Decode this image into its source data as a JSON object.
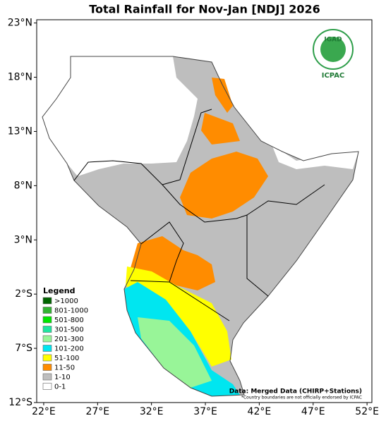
{
  "chart_data": {
    "type": "map",
    "title": "Total Rainfall for Nov-Jan [NDJ] 2026",
    "xlim": [
      21.35,
      52.45
    ],
    "ylim": [
      -12,
      23.3
    ],
    "xticks": [
      {
        "value": 22,
        "label": "22°E"
      },
      {
        "value": 27,
        "label": "27°E"
      },
      {
        "value": 32,
        "label": "32°E"
      },
      {
        "value": 37,
        "label": "37°E"
      },
      {
        "value": 42,
        "label": "42°E"
      },
      {
        "value": 47,
        "label": "47°E"
      },
      {
        "value": 52,
        "label": "52°E"
      }
    ],
    "yticks": [
      {
        "value": 23,
        "label": "23°N"
      },
      {
        "value": 18,
        "label": "18°N"
      },
      {
        "value": 13,
        "label": "13°N"
      },
      {
        "value": 8,
        "label": "8°N"
      },
      {
        "value": 3,
        "label": "3°N"
      },
      {
        "value": -2,
        "label": "2°S"
      },
      {
        "value": -7,
        "label": "7°S"
      },
      {
        "value": -12,
        "label": "12°S"
      }
    ],
    "legend": {
      "title": "Legend",
      "entries": [
        {
          "name": ">1000",
          "color": "#006400"
        },
        {
          "name": "801-1000",
          "color": "#32b432"
        },
        {
          "name": "501-800",
          "color": "#00e600"
        },
        {
          "name": "301-500",
          "color": "#1ee6a0"
        },
        {
          "name": "201-300",
          "color": "#98f598"
        },
        {
          "name": "101-200",
          "color": "#00e6f0"
        },
        {
          "name": "51-100",
          "color": "#ffff00"
        },
        {
          "name": "11-50",
          "color": "#ff8c00"
        },
        {
          "name": "1-10",
          "color": "#bebebe"
        },
        {
          "name": "0-1",
          "color": "#ffffff"
        }
      ]
    },
    "source": "Data: Merged Data (CHIRP+Stations)",
    "note": "*Country boundaries are not officially endorsed by ICPAC",
    "logo": {
      "top": "IGAD",
      "bottom": "ICPAC"
    }
  }
}
